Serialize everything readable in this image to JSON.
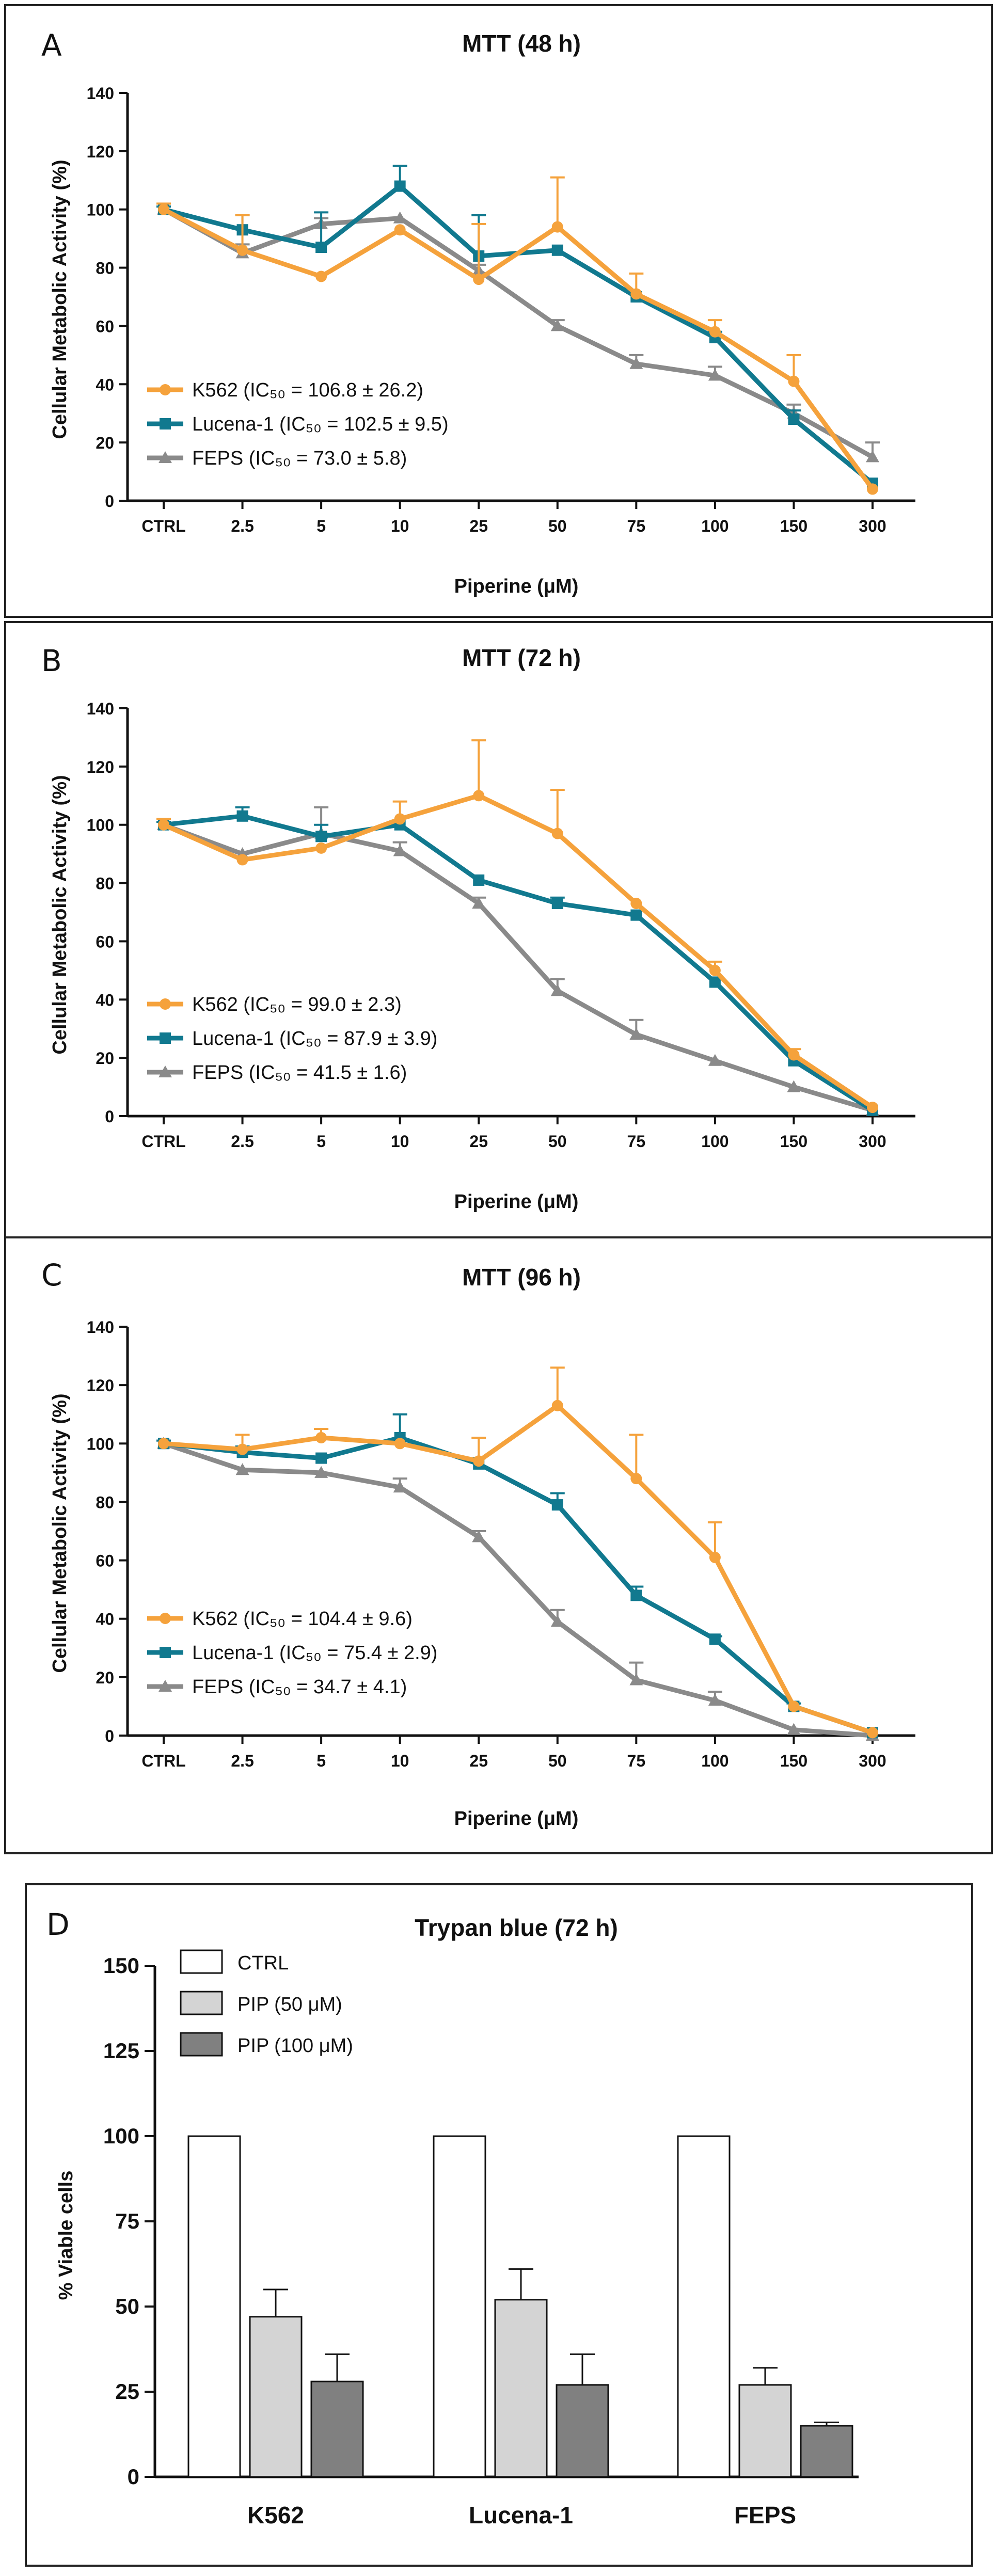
{
  "chart_data": [
    {
      "panel": "A",
      "type": "line",
      "title": "MTT (48 h)",
      "xlabel": "Piperine (μM)",
      "ylabel": "Cellular Metabolic Activity (%)",
      "categories": [
        "CTRL",
        "2.5",
        "5",
        "10",
        "25",
        "50",
        "75",
        "100",
        "150",
        "300"
      ],
      "ylim": [
        0,
        140
      ],
      "yticks": [
        "0",
        "20",
        "40",
        "60",
        "80",
        "100",
        "120",
        "140"
      ],
      "series": [
        {
          "name": "K562",
          "label": "K562 (IC₅₀ = 106.8 ± 26.2)",
          "color": "#F5A23C",
          "marker": "circle",
          "values": [
            100,
            86,
            77,
            93,
            76,
            94,
            71,
            58,
            41,
            4
          ],
          "errors": [
            2,
            12,
            0,
            0,
            19,
            17,
            7,
            4,
            9,
            0
          ]
        },
        {
          "name": "Lucena-1",
          "label": "Lucena-1 (IC₅₀ = 102.5 ± 9.5)",
          "color": "#11798F",
          "marker": "square",
          "values": [
            100,
            93,
            87,
            108,
            84,
            86,
            70,
            56,
            28,
            6
          ],
          "errors": [
            1,
            5,
            12,
            7,
            14,
            0,
            0,
            2,
            3,
            0
          ]
        },
        {
          "name": "FEPS",
          "label": "FEPS (IC₅₀ = 73.0 ± 5.8)",
          "color": "#8A8A8A",
          "marker": "triangle",
          "values": [
            100,
            85,
            95,
            97,
            79,
            60,
            47,
            43,
            30,
            15
          ],
          "errors": [
            1,
            3,
            2,
            0,
            2,
            2,
            3,
            3,
            3,
            5
          ]
        }
      ]
    },
    {
      "panel": "B",
      "type": "line",
      "title": "MTT (72 h)",
      "xlabel": "Piperine (μM)",
      "ylabel": "Cellular Metabolic Activity (%)",
      "categories": [
        "CTRL",
        "2.5",
        "5",
        "10",
        "25",
        "50",
        "75",
        "100",
        "150",
        "300"
      ],
      "ylim": [
        0,
        140
      ],
      "yticks": [
        "0",
        "20",
        "40",
        "60",
        "80",
        "100",
        "120",
        "140"
      ],
      "series": [
        {
          "name": "K562",
          "label": "K562 (IC₅₀ = 99.0 ± 2.3)",
          "color": "#F5A23C",
          "marker": "circle",
          "values": [
            100,
            88,
            92,
            102,
            110,
            97,
            73,
            50,
            21,
            3
          ],
          "errors": [
            2,
            0,
            0,
            6,
            19,
            15,
            0,
            3,
            2,
            0
          ]
        },
        {
          "name": "Lucena-1",
          "label": "Lucena-1 (IC₅₀ = 87.9 ± 3.9)",
          "color": "#11798F",
          "marker": "square",
          "values": [
            100,
            103,
            96,
            100,
            81,
            73,
            69,
            46,
            19,
            2
          ],
          "errors": [
            1,
            3,
            4,
            0,
            0,
            2,
            0,
            0,
            0,
            0
          ]
        },
        {
          "name": "FEPS",
          "label": "FEPS (IC₅₀ = 41.5 ± 1.6)",
          "color": "#8A8A8A",
          "marker": "triangle",
          "values": [
            100,
            90,
            97,
            91,
            73,
            43,
            28,
            19,
            10,
            2
          ],
          "errors": [
            1,
            0,
            9,
            3,
            2,
            4,
            5,
            0,
            0,
            0
          ]
        }
      ]
    },
    {
      "panel": "C",
      "type": "line",
      "title": "MTT (96 h)",
      "xlabel": "Piperine (μM)",
      "ylabel": "Cellular Metabolic Activity (%)",
      "categories": [
        "CTRL",
        "2.5",
        "5",
        "10",
        "25",
        "50",
        "75",
        "100",
        "150",
        "300"
      ],
      "ylim": [
        0,
        140
      ],
      "yticks": [
        "0",
        "20",
        "40",
        "60",
        "80",
        "100",
        "120",
        "140"
      ],
      "series": [
        {
          "name": "K562",
          "label": "K562 (IC₅₀ = 104.4 ± 9.6)",
          "color": "#F5A23C",
          "marker": "circle",
          "values": [
            100,
            98,
            102,
            100,
            94,
            113,
            88,
            61,
            10,
            1
          ],
          "errors": [
            0,
            5,
            3,
            0,
            8,
            13,
            15,
            12,
            0,
            0
          ]
        },
        {
          "name": "Lucena-1",
          "label": "Lucena-1 (IC₅₀ = 75.4 ± 2.9)",
          "color": "#11798F",
          "marker": "square",
          "values": [
            100,
            97,
            95,
            102,
            93,
            79,
            48,
            33,
            10,
            1
          ],
          "errors": [
            1,
            2,
            0,
            8,
            2,
            4,
            3,
            1,
            1,
            0
          ]
        },
        {
          "name": "FEPS",
          "label": "FEPS (IC₅₀ = 34.7 ± 4.1)",
          "color": "#8A8A8A",
          "marker": "triangle",
          "values": [
            100,
            91,
            90,
            85,
            68,
            39,
            19,
            12,
            2,
            0
          ],
          "errors": [
            1,
            0,
            0,
            3,
            2,
            4,
            6,
            3,
            0,
            0
          ]
        }
      ]
    },
    {
      "panel": "D",
      "type": "bar",
      "title": "Trypan blue (72 h)",
      "xlabel": "",
      "ylabel": "% Viable cells",
      "categories": [
        "K562",
        "Lucena-1",
        "FEPS"
      ],
      "ylim": [
        0,
        150
      ],
      "yticks": [
        "0",
        "25",
        "50",
        "75",
        "100",
        "125",
        "150"
      ],
      "series": [
        {
          "name": "CTRL",
          "color": "#FFFFFF",
          "values": [
            100,
            100,
            100
          ],
          "errors": [
            0,
            0,
            0
          ]
        },
        {
          "name": "PIP (50 μM)",
          "color": "#D4D4D4",
          "values": [
            47,
            52,
            27
          ],
          "errors": [
            8,
            9,
            5
          ]
        },
        {
          "name": "PIP (100 μM)",
          "color": "#808080",
          "values": [
            28,
            27,
            15
          ],
          "errors": [
            8,
            9,
            1
          ]
        }
      ]
    }
  ]
}
